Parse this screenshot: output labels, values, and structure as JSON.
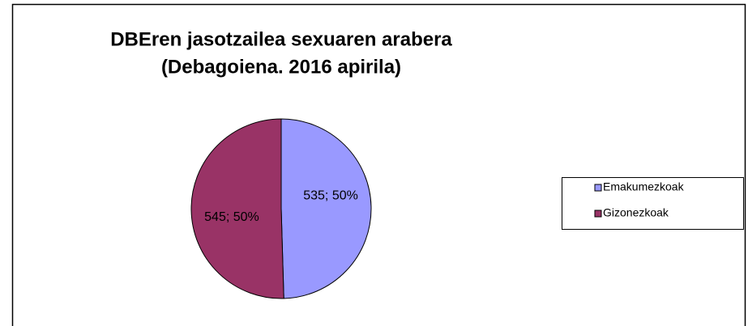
{
  "chart_data": {
    "type": "pie",
    "title": "DBEren jasotzailea sexuaren arabera",
    "subtitle": "(Debagoiena. 2016 apirila)",
    "categories": [
      "Emakumezkoak",
      "Gizonezkoak"
    ],
    "values": [
      535,
      545
    ],
    "value_labels": [
      "535; 50%",
      "545; 50%"
    ],
    "colors": [
      "#9999ff",
      "#993366"
    ],
    "legend": "right"
  }
}
